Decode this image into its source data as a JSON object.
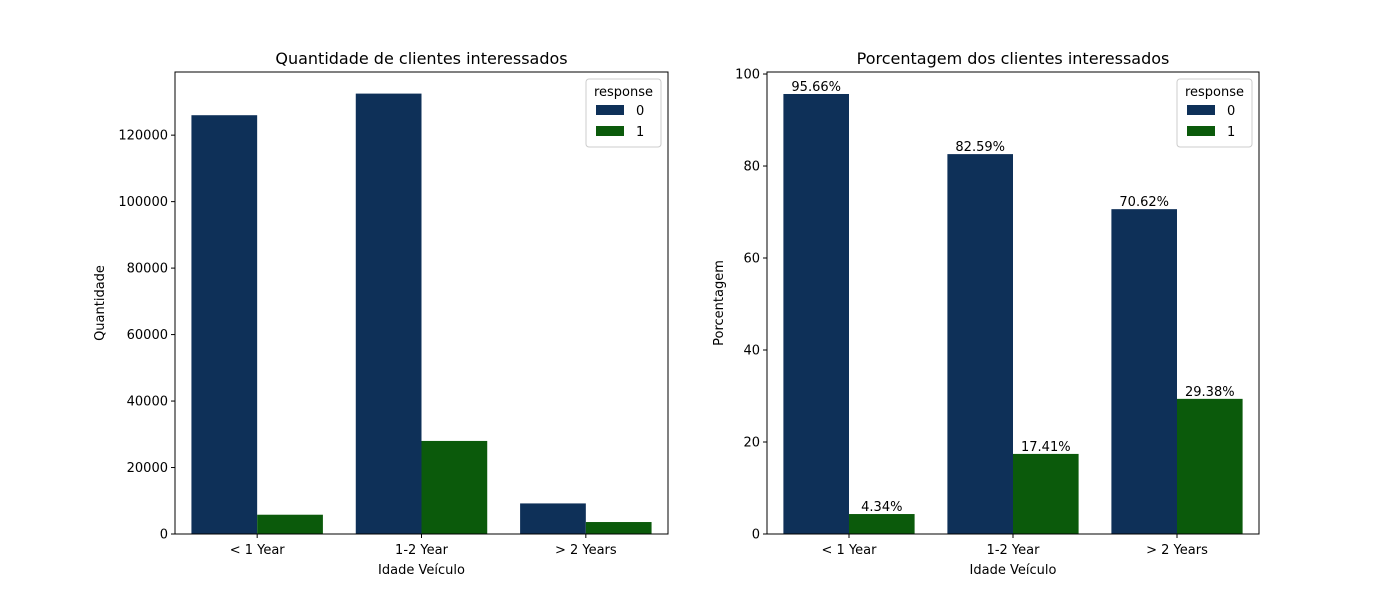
{
  "colors": {
    "series_0": "#0e3058",
    "series_1": "#0b5a0b",
    "legend_border": "#cccccc"
  },
  "chart_data": [
    {
      "type": "bar",
      "title": "Quantidade de clientes interessados",
      "xlabel": "Idade Veículo",
      "ylabel": "Quantidade",
      "categories": [
        "< 1 Year",
        "1-2 Year",
        "> 2 Years"
      ],
      "ylim": [
        0,
        139000
      ],
      "yticks": [
        0,
        20000,
        40000,
        60000,
        80000,
        100000,
        120000
      ],
      "legend": {
        "title": "response",
        "position": "top-right"
      },
      "series": [
        {
          "name": "0",
          "values": [
            126000,
            132500,
            9200
          ]
        },
        {
          "name": "1",
          "values": [
            5800,
            28000,
            3600
          ]
        }
      ],
      "data_labels": null
    },
    {
      "type": "bar",
      "title": "Porcentagem dos clientes interessados",
      "xlabel": "Idade Veículo",
      "ylabel": "Porcentagem",
      "categories": [
        "< 1 Year",
        "1-2 Year",
        "> 2 Years"
      ],
      "ylim": [
        0,
        100.44
      ],
      "yticks": [
        0,
        20,
        40,
        60,
        80,
        100
      ],
      "legend": {
        "title": "response",
        "position": "top-right"
      },
      "series": [
        {
          "name": "0",
          "values": [
            95.66,
            82.59,
            70.62
          ]
        },
        {
          "name": "1",
          "values": [
            4.34,
            17.41,
            29.38
          ]
        }
      ],
      "data_labels": [
        [
          "95.66%",
          "82.59%",
          "70.62%"
        ],
        [
          "4.34%",
          "17.41%",
          "29.38%"
        ]
      ]
    }
  ]
}
